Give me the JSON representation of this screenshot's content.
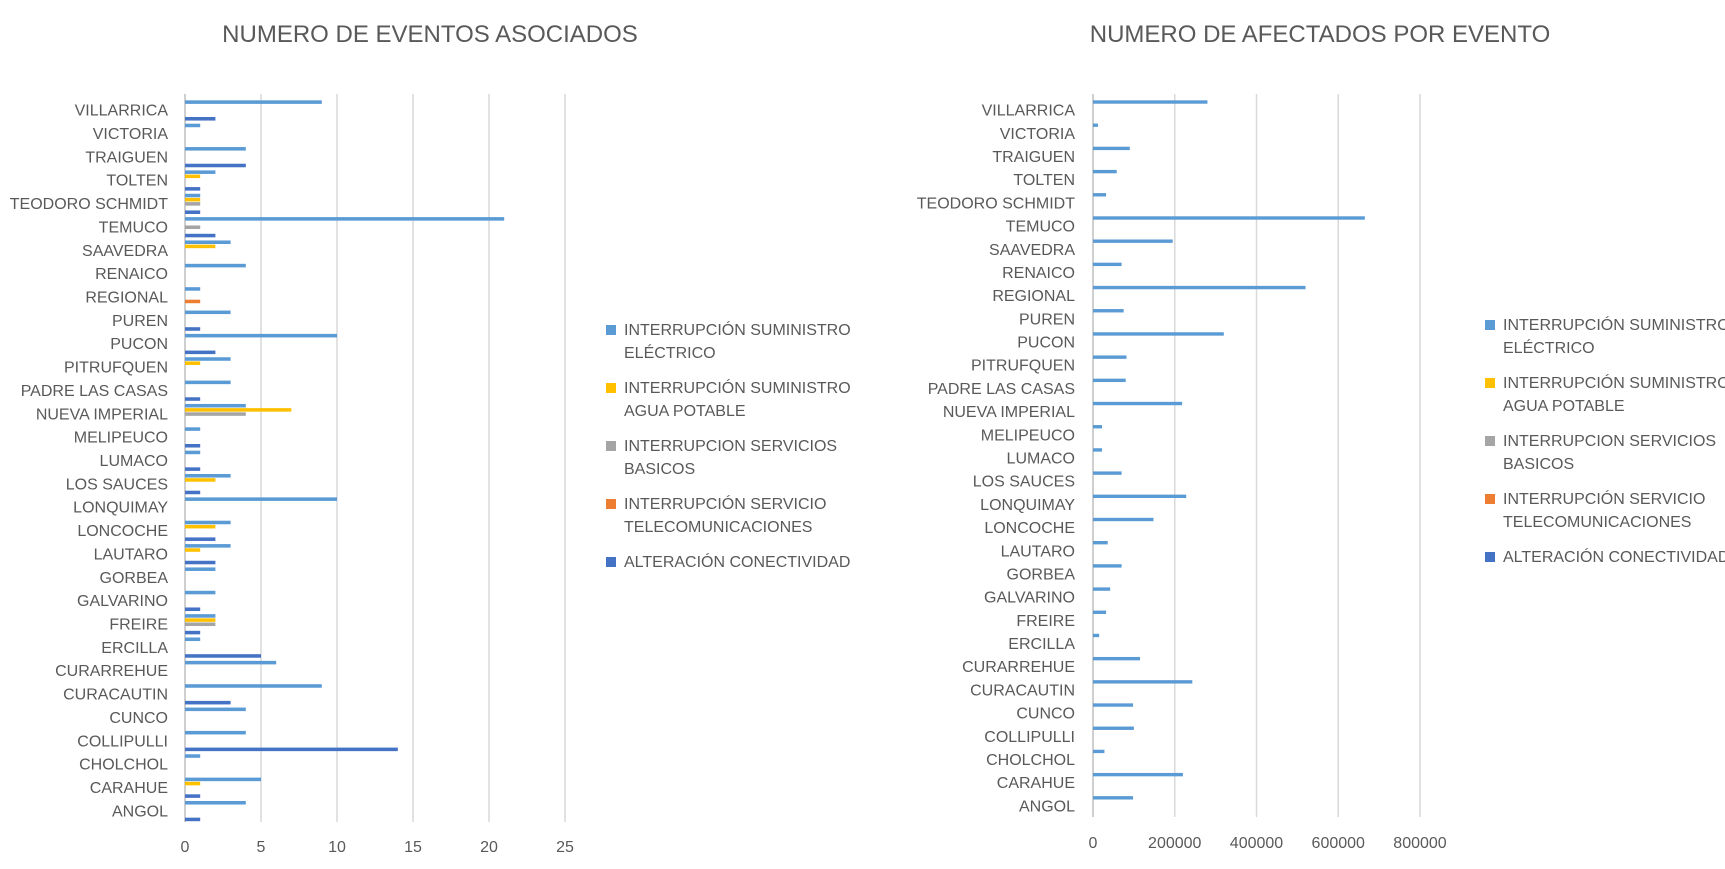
{
  "colors": {
    "interrupcion_electrico": "#5B9BD5",
    "interrupcion_agua": "#FFC000",
    "interrupcion_servicios": "#A5A5A5",
    "interrupcion_telecom": "#ED7D31",
    "alteracion_conectividad": "#4472C4",
    "grid": "#D9D9D9",
    "text": "#595959"
  },
  "chart_data": [
    {
      "type": "bar",
      "orientation": "horizontal",
      "title": "NUMERO DE EVENTOS ASOCIADOS",
      "xlim": [
        0,
        25
      ],
      "xticks": [
        "0",
        "5",
        "10",
        "15",
        "20",
        "25"
      ],
      "grid": true,
      "legend_position": "right",
      "categories": [
        "VILLARRICA",
        "VICTORIA",
        "TRAIGUEN",
        "TOLTEN",
        "TEODORO SCHMIDT",
        "TEMUCO",
        "SAAVEDRA",
        "RENAICO",
        "REGIONAL",
        "PUREN",
        "PUCON",
        "PITRUFQUEN",
        "PADRE LAS CASAS",
        "NUEVA IMPERIAL",
        "MELIPEUCO",
        "LUMACO",
        "LOS SAUCES",
        "LONQUIMAY",
        "LONCOCHE",
        "LAUTARO",
        "GORBEA",
        "GALVARINO",
        "FREIRE",
        "ERCILLA",
        "CURARREHUE",
        "CURACAUTIN",
        "CUNCO",
        "COLLIPULLI",
        "CHOLCHOL",
        "CARAHUE",
        "ANGOL"
      ],
      "series": [
        {
          "name": "INTERRUPCIÓN SUMINISTRO ELÉCTRICO",
          "color_key": "interrupcion_electrico",
          "values": [
            9,
            1,
            4,
            2,
            1,
            21,
            3,
            4,
            1,
            3,
            10,
            3,
            3,
            4,
            1,
            1,
            3,
            10,
            3,
            3,
            2,
            2,
            2,
            1,
            6,
            9,
            4,
            4,
            1,
            5,
            4
          ]
        },
        {
          "name": "INTERRUPCIÓN SUMINISTRO AGUA POTABLE",
          "color_key": "interrupcion_agua",
          "values": [
            0,
            0,
            0,
            1,
            1,
            0,
            2,
            0,
            0,
            0,
            0,
            1,
            0,
            7,
            0,
            0,
            2,
            0,
            2,
            1,
            0,
            0,
            2,
            0,
            0,
            0,
            0,
            0,
            0,
            1,
            0
          ]
        },
        {
          "name": "INTERRUPCION SERVICIOS BASICOS",
          "color_key": "interrupcion_servicios",
          "values": [
            0,
            0,
            0,
            0,
            1,
            1,
            0,
            0,
            0,
            0,
            0,
            0,
            0,
            4,
            0,
            0,
            0,
            0,
            0,
            0,
            0,
            0,
            2,
            0,
            0,
            0,
            0,
            0,
            0,
            0,
            0
          ]
        },
        {
          "name": "INTERRUPCIÓN SERVICIO TELECOMUNICACIONES",
          "color_key": "interrupcion_telecom",
          "values": [
            0,
            0,
            0,
            0,
            0,
            0,
            0,
            0,
            1,
            0,
            0,
            0,
            0,
            0,
            0,
            0,
            0,
            0,
            0,
            0,
            0,
            0,
            0,
            0,
            0,
            0,
            0,
            0,
            0,
            0,
            0
          ]
        },
        {
          "name": "ALTERACIÓN CONECTIVIDAD",
          "color_key": "alteracion_conectividad",
          "values": [
            2,
            0,
            4,
            1,
            1,
            2,
            0,
            0,
            0,
            1,
            2,
            0,
            1,
            0,
            1,
            1,
            1,
            0,
            2,
            2,
            0,
            1,
            1,
            5,
            0,
            3,
            0,
            14,
            0,
            1,
            1
          ]
        }
      ],
      "legend": [
        {
          "line1": "INTERRUPCIÓN SUMINISTRO",
          "line2": "ELÉCTRICO",
          "color_key": "interrupcion_electrico"
        },
        {
          "line1": "INTERRUPCIÓN SUMINISTRO",
          "line2": "AGUA POTABLE",
          "color_key": "interrupcion_agua"
        },
        {
          "line1": "INTERRUPCION SERVICIOS",
          "line2": "BASICOS",
          "color_key": "interrupcion_servicios"
        },
        {
          "line1": "INTERRUPCIÓN SERVICIO",
          "line2": "TELECOMUNICACIONES",
          "color_key": "interrupcion_telecom"
        },
        {
          "line1": "ALTERACIÓN CONECTIVIDAD",
          "line2": "",
          "color_key": "alteracion_conectividad"
        }
      ]
    },
    {
      "type": "bar",
      "orientation": "horizontal",
      "title": "NUMERO DE AFECTADOS POR EVENTO",
      "xlim": [
        0,
        800000
      ],
      "xticks": [
        "0",
        "200000",
        "400000",
        "600000",
        "800000"
      ],
      "grid": true,
      "legend_position": "right",
      "categories": [
        "VILLARRICA",
        "VICTORIA",
        "TRAIGUEN",
        "TOLTEN",
        "TEODORO SCHMIDT",
        "TEMUCO",
        "SAAVEDRA",
        "RENAICO",
        "REGIONAL",
        "PUREN",
        "PUCON",
        "PITRUFQUEN",
        "PADRE LAS CASAS",
        "NUEVA IMPERIAL",
        "MELIPEUCO",
        "LUMACO",
        "LOS SAUCES",
        "LONQUIMAY",
        "LONCOCHE",
        "LAUTARO",
        "GORBEA",
        "GALVARINO",
        "FREIRE",
        "ERCILLA",
        "CURARREHUE",
        "CURACAUTIN",
        "CUNCO",
        "COLLIPULLI",
        "CHOLCHOL",
        "CARAHUE",
        "ANGOL"
      ],
      "series": [
        {
          "name": "INTERRUPCIÓN SUMINISTRO ELÉCTRICO",
          "color_key": "interrupcion_electrico",
          "values": [
            280000,
            12000,
            90000,
            58000,
            32000,
            665000,
            195000,
            70000,
            520000,
            75000,
            320000,
            82000,
            80000,
            218000,
            22000,
            22000,
            70000,
            228000,
            148000,
            36000,
            70000,
            42000,
            32000,
            15000,
            115000,
            243000,
            98000,
            100000,
            28000,
            220000,
            98000
          ]
        }
      ],
      "legend": [
        {
          "line1": "INTERRUPCIÓN SUMINISTRO",
          "line2": "ELÉCTRICO",
          "color_key": "interrupcion_electrico"
        },
        {
          "line1": "INTERRUPCIÓN SUMINISTRO",
          "line2": "AGUA POTABLE",
          "color_key": "interrupcion_agua"
        },
        {
          "line1": "INTERRUPCION SERVICIOS",
          "line2": "BASICOS",
          "color_key": "interrupcion_servicios"
        },
        {
          "line1": "INTERRUPCIÓN SERVICIO",
          "line2": "TELECOMUNICACIONES",
          "color_key": "interrupcion_telecom"
        },
        {
          "line1": "ALTERACIÓN CONECTIVIDAD",
          "line2": "",
          "color_key": "alteracion_conectividad"
        }
      ]
    }
  ]
}
